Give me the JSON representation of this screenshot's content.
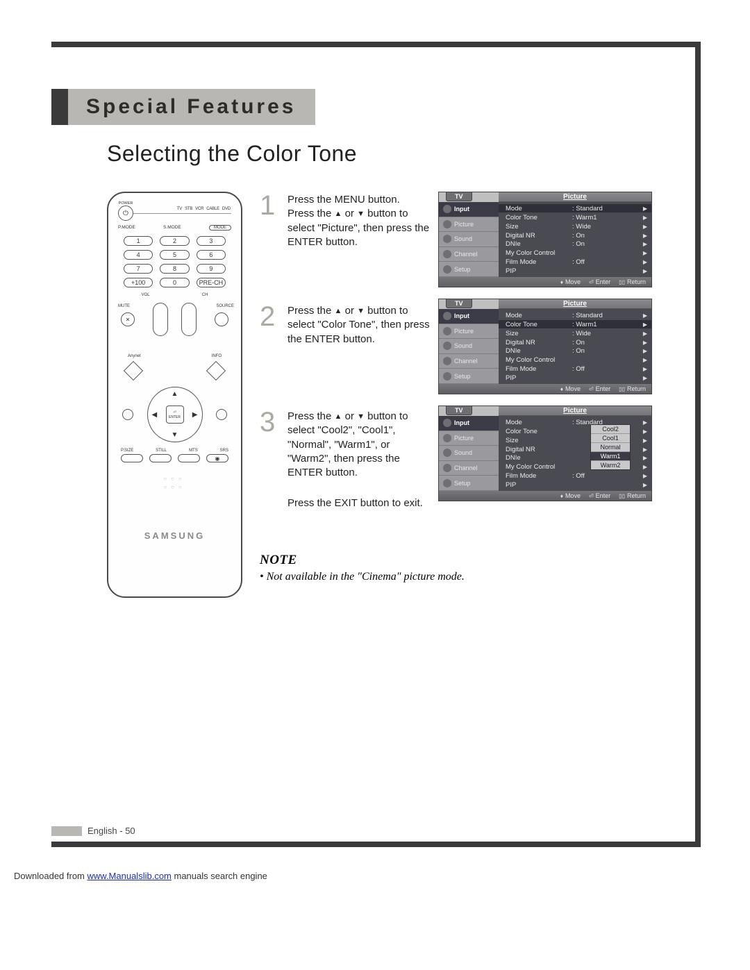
{
  "header": {
    "section": "Special Features"
  },
  "subtitle": "Selecting the Color Tone",
  "remote": {
    "power_label": "POWER",
    "devices": [
      "TV",
      "STB",
      "VCR",
      "CABLE",
      "DVD"
    ],
    "mode_labels": [
      "P.MODE",
      "S.MODE",
      "MODE"
    ],
    "numpad": [
      "1",
      "2",
      "3",
      "4",
      "5",
      "6",
      "7",
      "8",
      "9",
      "+100",
      "0",
      "PRE-CH"
    ],
    "vol": "VOL",
    "ch": "CH",
    "mute": "MUTE",
    "source": "SOURCE",
    "anynet": "Anynet",
    "info": "INFO",
    "menu": "MENU",
    "exit": "EXIT",
    "enter": "ENTER",
    "bottom_labels": [
      "P.SIZE",
      "STILL",
      "MTS",
      "SRS"
    ],
    "brand": "SAMSUNG"
  },
  "steps": [
    {
      "n": "1",
      "text_a": "Press the MENU button.",
      "text_b": "Press the ",
      "text_c": " or ",
      "text_d": " button to select \"Picture\", then press the ENTER button."
    },
    {
      "n": "2",
      "text_b": "Press the ",
      "text_c": " or ",
      "text_d": " button to select \"Color Tone\", then press the ENTER button."
    },
    {
      "n": "3",
      "text_b": "Press the ",
      "text_c": " or ",
      "text_d": " button to select \"Cool2\", \"Cool1\", \"Normal\", \"Warm1\", or \"Warm2\", then press the ENTER button."
    }
  ],
  "exit_line": "Press the EXIT button to exit.",
  "osd": {
    "tv": "TV",
    "title": "Picture",
    "tabs": [
      "Input",
      "Picture",
      "Sound",
      "Channel",
      "Setup"
    ],
    "foot": {
      "move": "Move",
      "enter": "Enter",
      "return": "Return"
    },
    "rows_base": [
      {
        "lab": "Mode",
        "val": ": Standard"
      },
      {
        "lab": "Color Tone",
        "val": ": Warm1"
      },
      {
        "lab": "Size",
        "val": ": Wide"
      },
      {
        "lab": "Digital NR",
        "val": ": On"
      },
      {
        "lab": "DNIe",
        "val": ": On"
      },
      {
        "lab": "My Color Control",
        "val": ""
      },
      {
        "lab": "Film Mode",
        "val": ": Off"
      },
      {
        "lab": "PIP",
        "val": ""
      }
    ],
    "panel1_sel_row": 0,
    "panel2_sel_row": 1,
    "panel3": {
      "rows": [
        {
          "lab": "Mode",
          "val": ": Standard"
        },
        {
          "lab": "Color Tone",
          "val": ""
        },
        {
          "lab": "Size",
          "val": ""
        },
        {
          "lab": "Digital NR",
          "val": ""
        },
        {
          "lab": "DNIe",
          "val": ""
        },
        {
          "lab": "My Color Control",
          "val": ""
        },
        {
          "lab": "Film Mode",
          "val": ": Off"
        },
        {
          "lab": "PIP",
          "val": ""
        }
      ],
      "dropdown": [
        "Cool2",
        "Cool1",
        "Normal",
        "Warm1",
        "Warm2"
      ],
      "dropdown_sel": 3
    }
  },
  "note": {
    "head": "NOTE",
    "body": "• Not available in the \"Cinema\" picture mode."
  },
  "page_footer": "English - 50",
  "download": {
    "pre": "Downloaded from ",
    "link": "www.Manualslib.com",
    "post": " manuals search engine"
  },
  "colors": {
    "frame": "#3a3a3a",
    "band": "#b8b7b3",
    "step_num": "#aca9a0",
    "osd_body": "#4a4a52",
    "osd_sel": "#3b3b47"
  }
}
